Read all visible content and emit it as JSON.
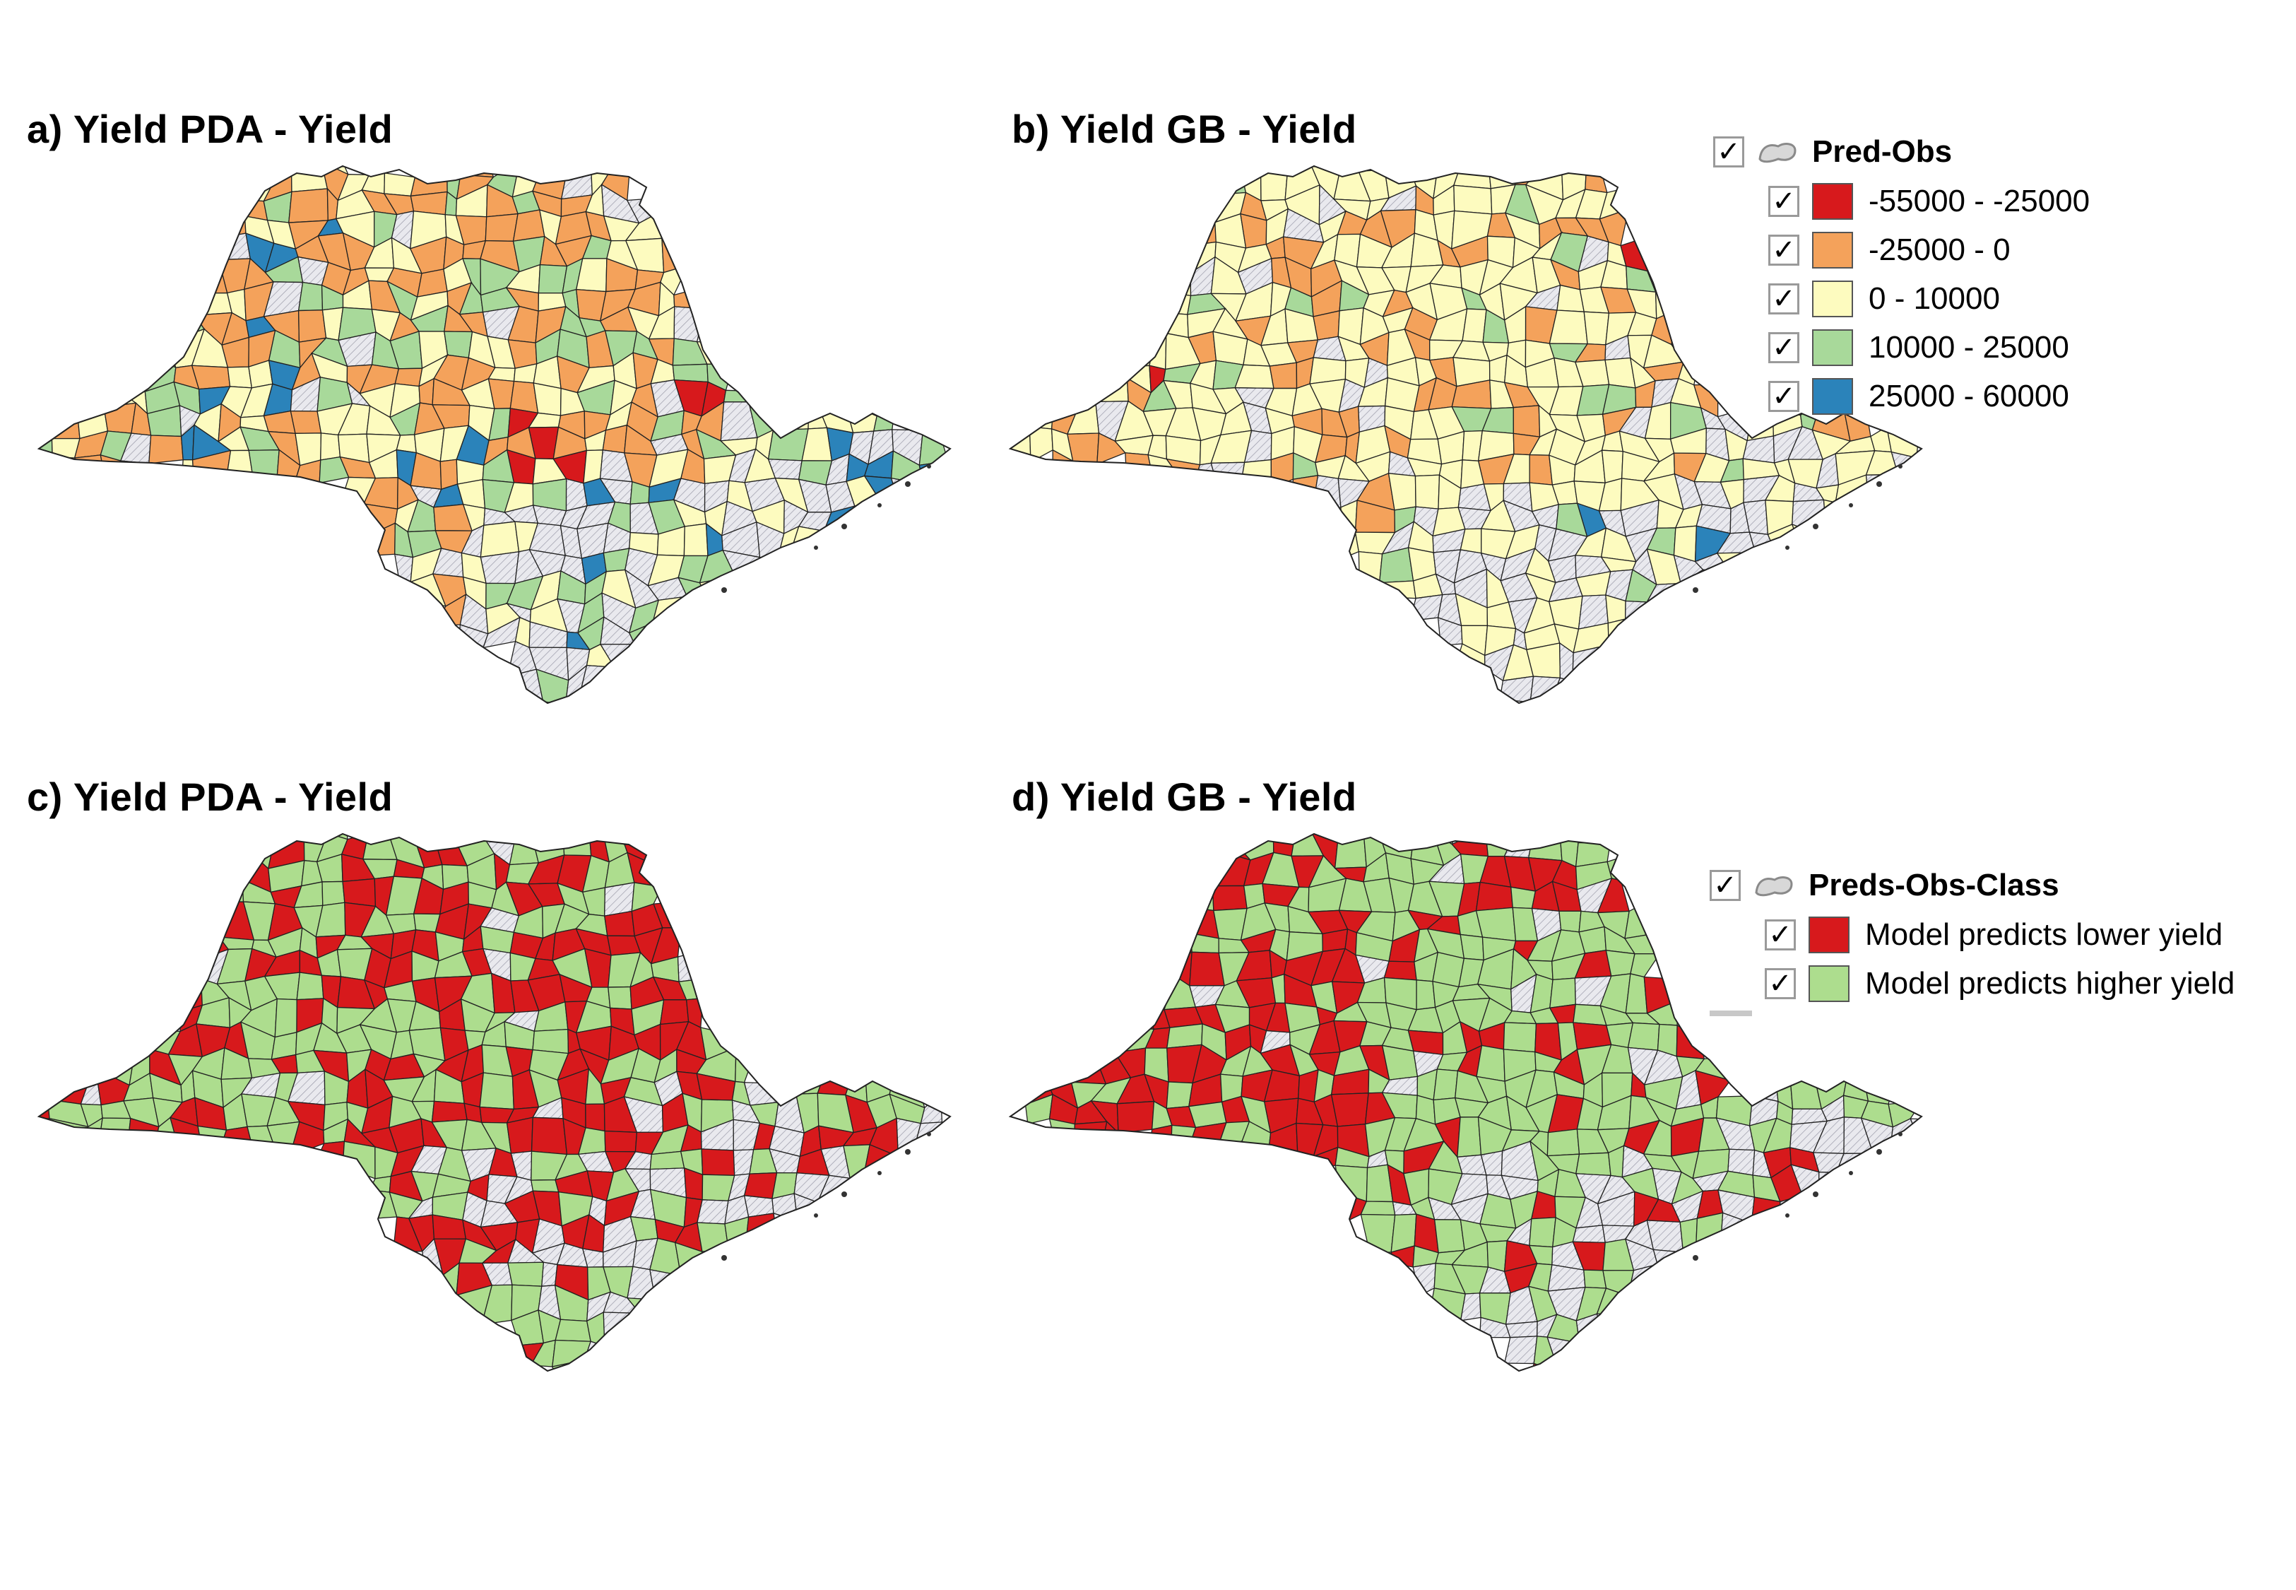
{
  "panels": [
    {
      "title": "a) Yield PDA - Yield",
      "scheme": "continuous",
      "seed": 7
    },
    {
      "title": "b) Yield GB - Yield",
      "scheme": "continuous_gb",
      "seed": 19
    },
    {
      "title": "c) Yield PDA - Yield",
      "scheme": "class",
      "seed": 31
    },
    {
      "title": "d) Yield GB - Yield",
      "scheme": "class_gb",
      "seed": 43
    }
  ],
  "legend_continuous": {
    "layer_name": "Pred-Obs",
    "checkbox_mark": "✓",
    "items": [
      {
        "label": "-55000 - -25000",
        "color": "#d7191c"
      },
      {
        "label": "-25000 - 0",
        "color": "#f4a25b"
      },
      {
        "label": "0 - 10000",
        "color": "#fdfbbf"
      },
      {
        "label": "10000 - 25000",
        "color": "#a8d99a"
      },
      {
        "label": "25000 - 60000",
        "color": "#2b83ba"
      }
    ]
  },
  "legend_class": {
    "layer_name": "Preds-Obs-Class",
    "checkbox_mark": "✓",
    "items": [
      {
        "label": "Model predicts lower yield",
        "color": "#d7191c"
      },
      {
        "label": "Model predicts higher yield",
        "color": "#addd8e"
      }
    ]
  },
  "no_data_color": "#e9e9ee",
  "border_color": "#222222"
}
